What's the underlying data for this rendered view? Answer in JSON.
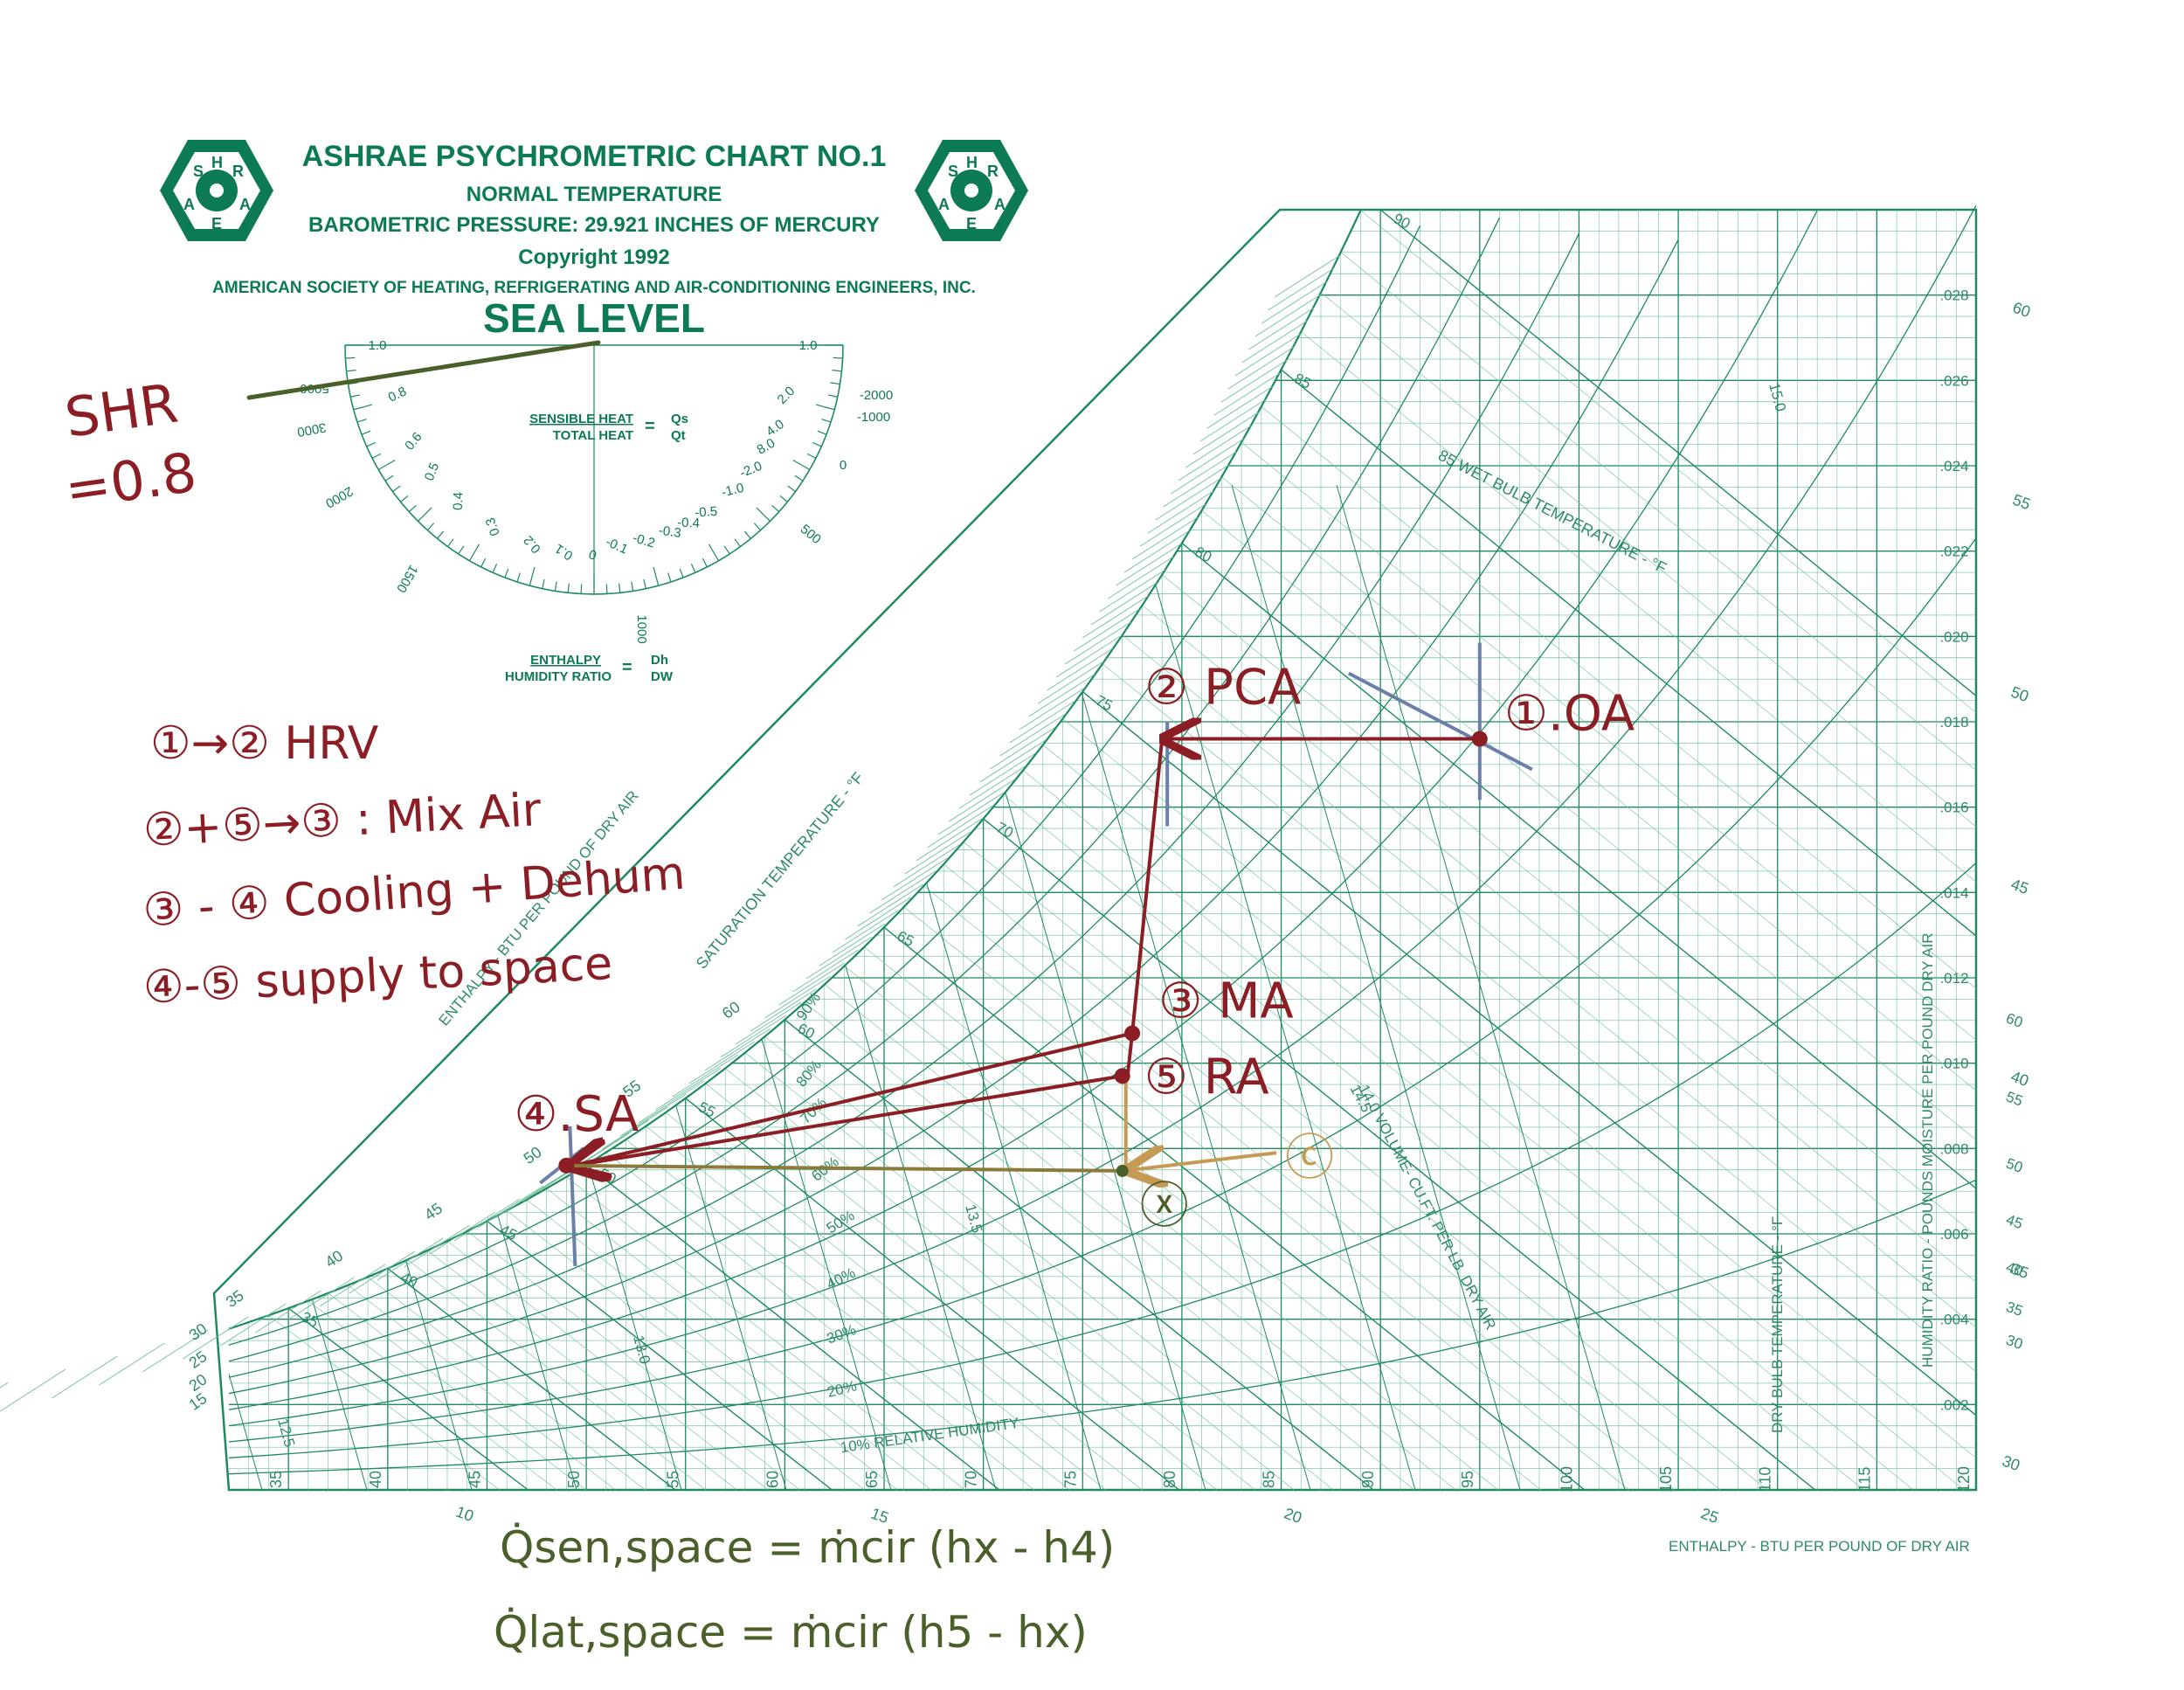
{
  "header": {
    "title": "ASHRAE PSYCHROMETRIC CHART NO.1",
    "subtitle": "NORMAL TEMPERATURE",
    "pressure": "BAROMETRIC PRESSURE: 29.921 INCHES OF MERCURY",
    "copyright": "Copyright 1992",
    "society": "AMERICAN SOCIETY OF HEATING, REFRIGERATING AND AIR-CONDITIONING ENGINEERS, INC.",
    "level": "SEA LEVEL",
    "logo_letters": [
      "S",
      "H",
      "R",
      "A",
      "E",
      "A"
    ]
  },
  "protractor": {
    "shr_label_top": "SENSIBLE HEAT",
    "shr_label_bottom": "TOTAL HEAT",
    "shr_symbol_top": "Qs",
    "shr_symbol_bottom": "Qt",
    "enthalpy_label_top": "ENTHALPY",
    "enthalpy_label_bottom": "HUMIDITY RATIO",
    "enthalpy_symbol_top": "Dh",
    "enthalpy_symbol_bottom": "DW",
    "left_scale": [
      "1.0",
      "0.8",
      "0.6",
      "0.5",
      "0.4",
      "0.3",
      "0.2",
      "0.1",
      "0"
    ],
    "right_scale": [
      "1.0",
      "2.0",
      "4.0",
      "8.0",
      "-2.0",
      "-1.0",
      "-0.5",
      "-0.4",
      "-0.3",
      "-0.2",
      "-0.1"
    ],
    "outer_left": [
      "5000",
      "3000",
      "2000",
      "1500"
    ],
    "outer_right": [
      "-2000",
      "-1000",
      "0",
      "500",
      "1000"
    ]
  },
  "chart_data": {
    "type": "psychrometric",
    "dry_bulb_ticks": [
      "35",
      "40",
      "45",
      "50",
      "55",
      "60",
      "65",
      "70",
      "75",
      "80",
      "85",
      "90",
      "95",
      "100",
      "105",
      "110",
      "115",
      "120"
    ],
    "humidity_ratio_ticks": [
      ".002",
      ".004",
      ".006",
      ".008",
      ".010",
      ".012",
      ".014",
      ".016",
      ".018",
      ".020",
      ".022",
      ".024",
      ".026",
      ".028"
    ],
    "dew_point_ticks": [
      "30",
      "35",
      "40",
      "45",
      "50",
      "55",
      "60"
    ],
    "enthalpy_ticks": [
      "10",
      "15",
      "20",
      "25",
      "30",
      "35",
      "40",
      "45",
      "50",
      "55",
      "60"
    ],
    "saturation_ticks": [
      "15",
      "20",
      "25",
      "30",
      "35",
      "40",
      "45",
      "50",
      "55",
      "60"
    ],
    "wet_bulb_ticks": [
      "35",
      "40",
      "45",
      "50",
      "55",
      "60",
      "65",
      "70",
      "75",
      "80",
      "85",
      "90"
    ],
    "rh_ticks": [
      "10% RELATIVE HUMIDITY",
      "20%",
      "30%",
      "40%",
      "50%",
      "60%",
      "70%",
      "80%",
      "90%"
    ],
    "volume_ticks": [
      "12.5",
      "13.0",
      "13.5",
      "14.0 VOLUME- CU.FT. PER LB. DRY AIR",
      "14.5",
      "15.0"
    ],
    "xlabel": "DRY BULB TEMPERATURE - °F",
    "ylabel": "HUMIDITY RATIO - POUNDS MOISTURE PER POUND DRY AIR",
    "enthalpy_label": "ENTHALPY - BTU PER POUND OF DRY AIR",
    "enthalpy_label_left": "ENTHALPY - BTU PER POUND OF DRY AIR",
    "saturation_label": "SATURATION TEMPERATURE - °F",
    "wet_bulb_label": "85 WET BULB TEMPERATURE - °F",
    "xlim": [
      32,
      120
    ],
    "ylim": [
      0,
      0.03
    ],
    "points": [
      {
        "label": "①.OA",
        "dry_bulb": 95,
        "humidity_ratio": 0.0176
      },
      {
        "label": "② PCA",
        "dry_bulb": 79,
        "humidity_ratio": 0.0176
      },
      {
        "label": "③ MA",
        "dry_bulb": 77.5,
        "humidity_ratio": 0.0107
      },
      {
        "label": "⑤ RA",
        "dry_bulb": 77,
        "humidity_ratio": 0.0097
      },
      {
        "label": "④.SA",
        "dry_bulb": 49,
        "humidity_ratio": 0.0076
      },
      {
        "label": "ⓧ",
        "dry_bulb": 77,
        "humidity_ratio": 0.0076
      },
      {
        "label": "ⓒ",
        "dry_bulb": 83,
        "humidity_ratio": 0.0079
      }
    ]
  },
  "annotations": {
    "shr": "SHR",
    "shr_value": "=0.8",
    "legend": [
      "①→② HRV",
      "②+⑤→③ : Mix Air",
      "③ - ④ Cooling + Dehum",
      "④-⑤ supply to space"
    ],
    "eq1": "Q̇sen,space = ṁcir (hx - h4)",
    "eq2": "Q̇lat,space = ṁcir (h5 - hx)"
  },
  "colors": {
    "chart": "#1e8a5e",
    "chart_light": "#6fbf9a",
    "process": "#8b1e24",
    "marker": "#6b7fa8",
    "olive": "#4a5f2a",
    "tan": "#c49a55"
  }
}
